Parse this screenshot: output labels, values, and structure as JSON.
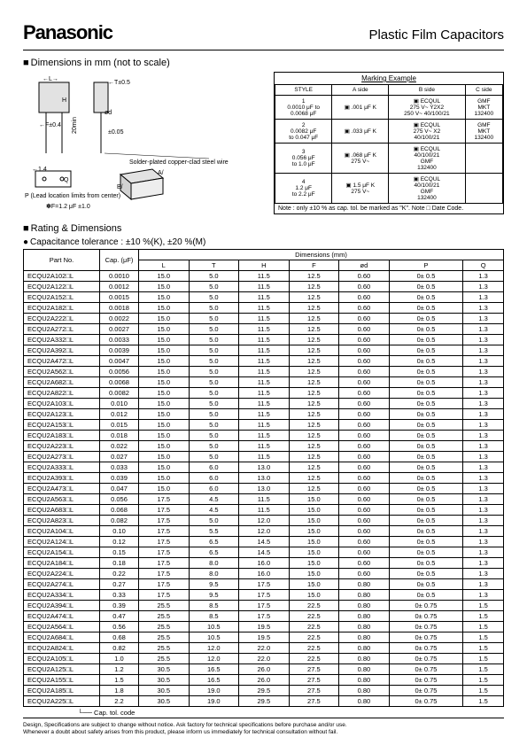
{
  "header": {
    "brand": "Panasonic",
    "product_title": "Plastic Film Capacitors"
  },
  "sections": {
    "dimensions_title": "Dimensions in mm (not to scale)",
    "rating_title": "Rating & Dimensions",
    "tolerance_note": "Capacitance tolerance : ±10 %(K), ±20 %(M)"
  },
  "diagram": {
    "labels": {
      "L": "←L→",
      "T": "←T±0.5",
      "H": "H",
      "d": "ød",
      "F": "←F±0.4",
      "min20": "20min",
      "pm005": "±0.05",
      "wire": "Solder-plated copper-clad steel wire",
      "pm14": "←1.4",
      "Q": "Q",
      "Plimit": "P (Lead location limits from center)",
      "Fnote": "✽F=1.2 μF ±1.0"
    }
  },
  "marking": {
    "title": "Marking Example",
    "headers": [
      "STYLE",
      "A side",
      "B side",
      "C side"
    ],
    "rows": [
      {
        "style": "1\n0.0010 μF to\n0.0068 μF",
        "a": "▣ .001 μF  K",
        "b": "▣ ECQUL\n275 V~ Y2X2\n250 V~ 40/100/21",
        "c": "GMF\nMKT\n132400"
      },
      {
        "style": "2\n0.0082 μF\nto 0.047 μF",
        "a": "▣ .033 μF  K",
        "b": "▣ ECQUL\n275 V~ X2\n40/100/21",
        "c": "GMF\nMKT\n132400"
      },
      {
        "style": "3\n0.056 μF\nto 1.0 μF",
        "a": "▣ .068 μF  K\n275 V~",
        "b": "▣ ECQUL\n40/100/21\nGMF\n132400",
        "c": ""
      },
      {
        "style": "4\n1.2 μF\nto 2.2 μF",
        "a": "▣ 1.5 μF  K\n275 V~",
        "b": "▣ ECQUL\n40/100/21\nGMF\n132400",
        "c": ""
      }
    ],
    "note": "Note : only ±10 % as cap. tol. be marked as \"K\". Note □ Date Code."
  },
  "table": {
    "headers": {
      "partno": "Part No.",
      "cap": "Cap.\n(μF)",
      "dims": "Dimensions (mm)",
      "cols": [
        "L",
        "T",
        "H",
        "F",
        "ød",
        "P",
        "Q"
      ]
    },
    "rows": [
      [
        "ECQU2A102□L",
        "0.0010",
        "15.0",
        "5.0",
        "11.5",
        "12.5",
        "0.60",
        "0± 0.5",
        "1.3"
      ],
      [
        "ECQU2A122□L",
        "0.0012",
        "15.0",
        "5.0",
        "11.5",
        "12.5",
        "0.60",
        "0± 0.5",
        "1.3"
      ],
      [
        "ECQU2A152□L",
        "0.0015",
        "15.0",
        "5.0",
        "11.5",
        "12.5",
        "0.60",
        "0± 0.5",
        "1.3"
      ],
      [
        "ECQU2A182□L",
        "0.0018",
        "15.0",
        "5.0",
        "11.5",
        "12.5",
        "0.60",
        "0± 0.5",
        "1.3"
      ],
      [
        "ECQU2A222□L",
        "0.0022",
        "15.0",
        "5.0",
        "11.5",
        "12.5",
        "0.60",
        "0± 0.5",
        "1.3"
      ],
      [
        "ECQU2A272□L",
        "0.0027",
        "15.0",
        "5.0",
        "11.5",
        "12.5",
        "0.60",
        "0± 0.5",
        "1.3"
      ],
      [
        "ECQU2A332□L",
        "0.0033",
        "15.0",
        "5.0",
        "11.5",
        "12.5",
        "0.60",
        "0± 0.5",
        "1.3"
      ],
      [
        "ECQU2A392□L",
        "0.0039",
        "15.0",
        "5.0",
        "11.5",
        "12.5",
        "0.60",
        "0± 0.5",
        "1.3"
      ],
      [
        "ECQU2A472□L",
        "0.0047",
        "15.0",
        "5.0",
        "11.5",
        "12.5",
        "0.60",
        "0± 0.5",
        "1.3"
      ],
      [
        "ECQU2A562□L",
        "0.0056",
        "15.0",
        "5.0",
        "11.5",
        "12.5",
        "0.60",
        "0± 0.5",
        "1.3"
      ],
      [
        "ECQU2A682□L",
        "0.0068",
        "15.0",
        "5.0",
        "11.5",
        "12.5",
        "0.60",
        "0± 0.5",
        "1.3"
      ],
      [
        "ECQU2A822□L",
        "0.0082",
        "15.0",
        "5.0",
        "11.5",
        "12.5",
        "0.60",
        "0± 0.5",
        "1.3"
      ],
      [
        "ECQU2A103□L",
        "0.010",
        "15.0",
        "5.0",
        "11.5",
        "12.5",
        "0.60",
        "0± 0.5",
        "1.3"
      ],
      [
        "ECQU2A123□L",
        "0.012",
        "15.0",
        "5.0",
        "11.5",
        "12.5",
        "0.60",
        "0± 0.5",
        "1.3"
      ],
      [
        "ECQU2A153□L",
        "0.015",
        "15.0",
        "5.0",
        "11.5",
        "12.5",
        "0.60",
        "0± 0.5",
        "1.3"
      ],
      [
        "ECQU2A183□L",
        "0.018",
        "15.0",
        "5.0",
        "11.5",
        "12.5",
        "0.60",
        "0± 0.5",
        "1.3"
      ],
      [
        "ECQU2A223□L",
        "0.022",
        "15.0",
        "5.0",
        "11.5",
        "12.5",
        "0.60",
        "0± 0.5",
        "1.3"
      ],
      [
        "ECQU2A273□L",
        "0.027",
        "15.0",
        "5.0",
        "11.5",
        "12.5",
        "0.60",
        "0± 0.5",
        "1.3"
      ],
      [
        "ECQU2A333□L",
        "0.033",
        "15.0",
        "6.0",
        "13.0",
        "12.5",
        "0.60",
        "0± 0.5",
        "1.3"
      ],
      [
        "ECQU2A393□L",
        "0.039",
        "15.0",
        "6.0",
        "13.0",
        "12.5",
        "0.60",
        "0± 0.5",
        "1.3"
      ],
      [
        "ECQU2A473□L",
        "0.047",
        "15.0",
        "6.0",
        "13.0",
        "12.5",
        "0.60",
        "0± 0.5",
        "1.3"
      ],
      [
        "ECQU2A563□L",
        "0.056",
        "17.5",
        "4.5",
        "11.5",
        "15.0",
        "0.60",
        "0± 0.5",
        "1.3"
      ],
      [
        "ECQU2A683□L",
        "0.068",
        "17.5",
        "4.5",
        "11.5",
        "15.0",
        "0.60",
        "0± 0.5",
        "1.3"
      ],
      [
        "ECQU2A823□L",
        "0.082",
        "17.5",
        "5.0",
        "12.0",
        "15.0",
        "0.60",
        "0± 0.5",
        "1.3"
      ],
      [
        "ECQU2A104□L",
        "0.10",
        "17.5",
        "5.5",
        "12.0",
        "15.0",
        "0.60",
        "0± 0.5",
        "1.3"
      ],
      [
        "ECQU2A124□L",
        "0.12",
        "17.5",
        "6.5",
        "14.5",
        "15.0",
        "0.60",
        "0± 0.5",
        "1.3"
      ],
      [
        "ECQU2A154□L",
        "0.15",
        "17.5",
        "6.5",
        "14.5",
        "15.0",
        "0.60",
        "0± 0.5",
        "1.3"
      ],
      [
        "ECQU2A184□L",
        "0.18",
        "17.5",
        "8.0",
        "16.0",
        "15.0",
        "0.60",
        "0± 0.5",
        "1.3"
      ],
      [
        "ECQU2A224□L",
        "0.22",
        "17.5",
        "8.0",
        "16.0",
        "15.0",
        "0.60",
        "0± 0.5",
        "1.3"
      ],
      [
        "ECQU2A274□L",
        "0.27",
        "17.5",
        "9.5",
        "17.5",
        "15.0",
        "0.80",
        "0± 0.5",
        "1.3"
      ],
      [
        "ECQU2A334□L",
        "0.33",
        "17.5",
        "9.5",
        "17.5",
        "15.0",
        "0.80",
        "0± 0.5",
        "1.3"
      ],
      [
        "ECQU2A394□L",
        "0.39",
        "25.5",
        "8.5",
        "17.5",
        "22.5",
        "0.80",
        "0± 0.75",
        "1.5"
      ],
      [
        "ECQU2A474□L",
        "0.47",
        "25.5",
        "8.5",
        "17.5",
        "22.5",
        "0.80",
        "0± 0.75",
        "1.5"
      ],
      [
        "ECQU2A564□L",
        "0.56",
        "25.5",
        "10.5",
        "19.5",
        "22.5",
        "0.80",
        "0± 0.75",
        "1.5"
      ],
      [
        "ECQU2A684□L",
        "0.68",
        "25.5",
        "10.5",
        "19.5",
        "22.5",
        "0.80",
        "0± 0.75",
        "1.5"
      ],
      [
        "ECQU2A824□L",
        "0.82",
        "25.5",
        "12.0",
        "22.0",
        "22.5",
        "0.80",
        "0± 0.75",
        "1.5"
      ],
      [
        "ECQU2A105□L",
        "1.0",
        "25.5",
        "12.0",
        "22.0",
        "22.5",
        "0.80",
        "0± 0.75",
        "1.5"
      ],
      [
        "ECQU2A125□L",
        "1.2",
        "30.5",
        "16.5",
        "26.0",
        "27.5",
        "0.80",
        "0± 0.75",
        "1.5"
      ],
      [
        "ECQU2A155□L",
        "1.5",
        "30.5",
        "16.5",
        "26.0",
        "27.5",
        "0.80",
        "0± 0.75",
        "1.5"
      ],
      [
        "ECQU2A185□L",
        "1.8",
        "30.5",
        "19.0",
        "29.5",
        "27.5",
        "0.80",
        "0± 0.75",
        "1.5"
      ],
      [
        "ECQU2A225□L",
        "2.2",
        "30.5",
        "19.0",
        "29.5",
        "27.5",
        "0.80",
        "0± 0.75",
        "1.5"
      ]
    ],
    "tol_note": "└── Cap. tol. code"
  },
  "footer": {
    "line1": "Design, Specifications are subject to change without notice.    Ask factory for technical specifications before purchase and/or use.",
    "line2": "Whenever a doubt about safety arises from this product, please inform us immediately for technical consultation without fail."
  }
}
